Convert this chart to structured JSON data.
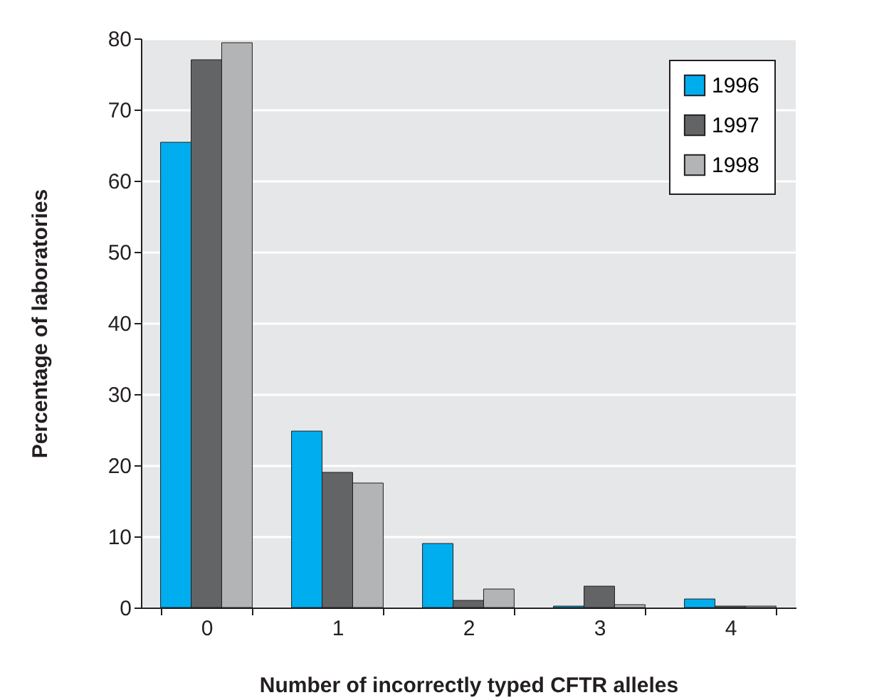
{
  "chart_data": {
    "type": "bar",
    "xlabel": "Number of incorrectly typed CFTR alleles",
    "ylabel": "Percentage of laboratories",
    "categories": [
      "0",
      "1",
      "2",
      "3",
      "4"
    ],
    "series": [
      {
        "name": "1996",
        "color": "#00aeef",
        "values": [
          65.4,
          24.8,
          9,
          0.2,
          1.2
        ]
      },
      {
        "name": "1997",
        "color": "#636466",
        "values": [
          77,
          19,
          1,
          3,
          0.2
        ]
      },
      {
        "name": "1998",
        "color": "#b3b4b6",
        "values": [
          79.4,
          17.5,
          2.6,
          0.4,
          0.2
        ]
      }
    ],
    "ylim": [
      0,
      80
    ],
    "yticks": [
      0,
      10,
      20,
      30,
      40,
      50,
      60,
      70,
      80
    ],
    "grid": "y",
    "legend": "top right"
  }
}
